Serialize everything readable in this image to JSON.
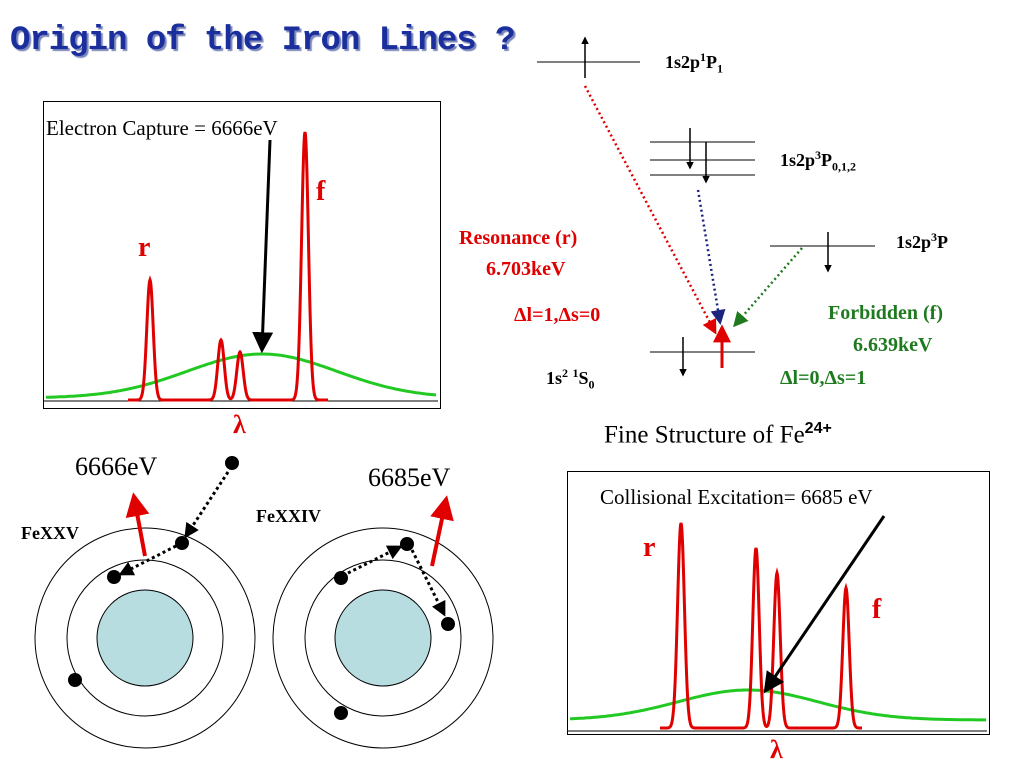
{
  "title": "Origin of the Iron Lines ?",
  "colors": {
    "title": "#1a2e9e",
    "red": "#e00000",
    "green": "#22c922",
    "darkgreen": "#1f7a1f",
    "nucleus": "#b8dde0",
    "blue_arrow": "#1a237e"
  },
  "top_spectrum": {
    "label": "Electron Capture = 6666eV",
    "r": "r",
    "f": "f",
    "lambda": "λ"
  },
  "bottom_spectrum": {
    "label": "Collisional Excitation= 6685 eV",
    "r": "r",
    "f": "f",
    "lambda": "λ"
  },
  "levels": {
    "p1": {
      "base": "1s2p",
      "sup": "1",
      "mid": "P",
      "sub": "1"
    },
    "p3012": {
      "base": "1s2p",
      "sup": "3",
      "mid": "P",
      "sub": "0,1,2"
    },
    "p3": {
      "base": "1s2p",
      "sup": "3",
      "mid": "P"
    },
    "ground": {
      "base": "1s",
      "sup": "2",
      "sup2": "1",
      "mid": "S",
      "sub": "0"
    }
  },
  "resonance": {
    "name": "Resonance (r)",
    "energy": "6.703keV",
    "rule": "Δl=1,Δs=0"
  },
  "forbidden": {
    "name": "Forbidden (f)",
    "energy": "6.639keV",
    "rule": "Δl=0,Δs=1"
  },
  "fine_structure": {
    "text": "Fine Structure of Fe",
    "sup": "24+"
  },
  "atoms": {
    "left_energy": "6666eV",
    "left_ion": "FeXXV",
    "right_energy": "6685eV",
    "right_ion": "FeXXIV"
  }
}
